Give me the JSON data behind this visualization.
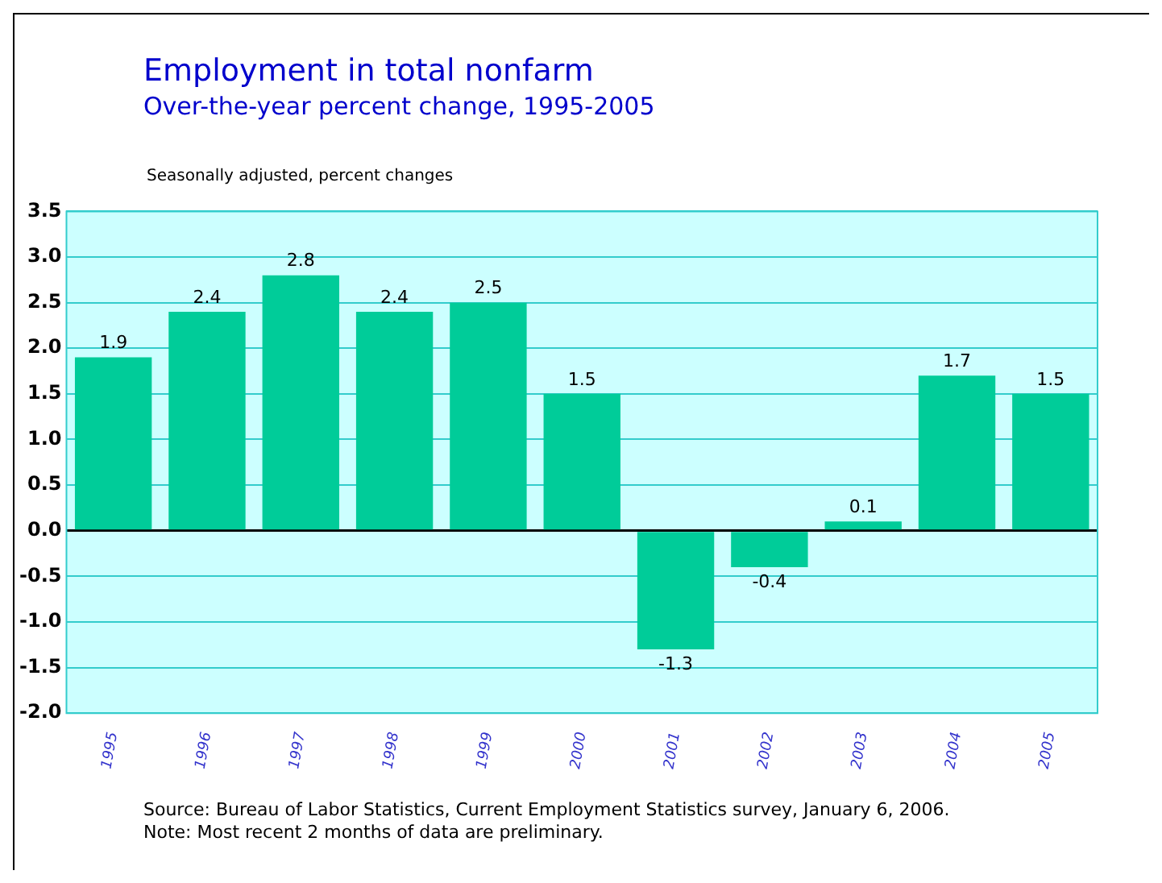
{
  "chart_data": {
    "type": "bar",
    "title": "Employment in total nonfarm",
    "subtitle": "Over-the-year percent change, 1995-2005",
    "ylabel": "Seasonally adjusted, percent changes",
    "categories": [
      "1995",
      "1996",
      "1997",
      "1998",
      "1999",
      "2000",
      "2001",
      "2002",
      "2003",
      "2004",
      "2005"
    ],
    "values": [
      1.9,
      2.4,
      2.8,
      2.4,
      2.5,
      1.5,
      -1.3,
      -0.4,
      0.1,
      1.7,
      1.5
    ],
    "color": "#00cc99",
    "data_labels": true,
    "ylim": [
      -2,
      3.5
    ],
    "yticks": [
      {
        "value": -2,
        "label": "-2.0"
      },
      {
        "value": -1.5,
        "label": "-1.5"
      },
      {
        "value": -1,
        "label": "-1.0"
      },
      {
        "value": -0.5,
        "label": "-0.5"
      },
      {
        "value": 0,
        "label": "0.0"
      },
      {
        "value": 0.5,
        "label": "0.5"
      },
      {
        "value": 1,
        "label": "1.0"
      },
      {
        "value": 1.5,
        "label": "1.5"
      },
      {
        "value": 2,
        "label": "2.0"
      },
      {
        "value": 2.5,
        "label": "2.5"
      },
      {
        "value": 3,
        "label": "3.0"
      },
      {
        "value": 3.5,
        "label": "3.5"
      }
    ],
    "grid": "y",
    "annotations": [
      "Source:  Bureau of Labor Statistics, Current Employment Statistics survey, January 6, 2006.",
      "Note:  Most recent 2 months of data are preliminary."
    ]
  }
}
